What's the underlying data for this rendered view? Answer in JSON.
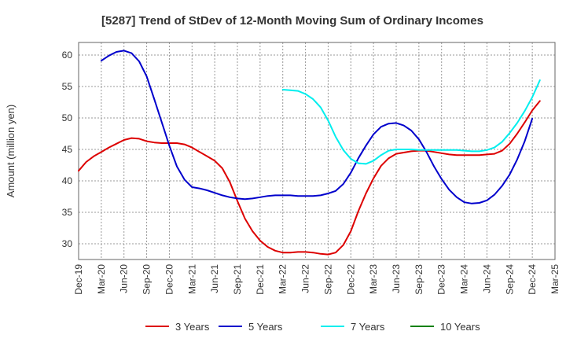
{
  "chart_data": {
    "type": "line",
    "title": "[5287]  Trend of StDev of 12-Month Moving Sum of Ordinary Incomes",
    "ylabel": "Amount (million yen)",
    "xlabel": "",
    "ylim": [
      27.5,
      62
    ],
    "yticks": [
      30,
      35,
      40,
      45,
      50,
      55,
      60
    ],
    "x_range": [
      "2019-12",
      "2025-03"
    ],
    "xticks": [
      "Dec-19",
      "Mar-20",
      "Jun-20",
      "Sep-20",
      "Dec-20",
      "Mar-21",
      "Jun-21",
      "Sep-21",
      "Dec-21",
      "Mar-22",
      "Jun-22",
      "Sep-22",
      "Dec-22",
      "Mar-23",
      "Jun-23",
      "Sep-23",
      "Dec-23",
      "Mar-24",
      "Jun-24",
      "Sep-24",
      "Dec-24",
      "Mar-25"
    ],
    "grid": true,
    "legend_position": "bottom",
    "series": [
      {
        "name": "3 Years",
        "color": "#dd0000",
        "points": [
          [
            "2019-12",
            41.6
          ],
          [
            "2020-01",
            43.0
          ],
          [
            "2020-02",
            43.9
          ],
          [
            "2020-03",
            44.6
          ],
          [
            "2020-04",
            45.3
          ],
          [
            "2020-05",
            45.9
          ],
          [
            "2020-06",
            46.5
          ],
          [
            "2020-07",
            46.8
          ],
          [
            "2020-08",
            46.7
          ],
          [
            "2020-09",
            46.3
          ],
          [
            "2020-10",
            46.1
          ],
          [
            "2020-11",
            46.0
          ],
          [
            "2020-12",
            46.0
          ],
          [
            "2021-01",
            46.0
          ],
          [
            "2021-02",
            45.8
          ],
          [
            "2021-03",
            45.3
          ],
          [
            "2021-04",
            44.6
          ],
          [
            "2021-05",
            43.9
          ],
          [
            "2021-06",
            43.2
          ],
          [
            "2021-07",
            42.0
          ],
          [
            "2021-08",
            39.8
          ],
          [
            "2021-09",
            36.8
          ],
          [
            "2021-10",
            34.0
          ],
          [
            "2021-11",
            32.0
          ],
          [
            "2021-12",
            30.5
          ],
          [
            "2022-01",
            29.5
          ],
          [
            "2022-02",
            28.9
          ],
          [
            "2022-03",
            28.6
          ],
          [
            "2022-04",
            28.6
          ],
          [
            "2022-05",
            28.7
          ],
          [
            "2022-06",
            28.7
          ],
          [
            "2022-07",
            28.6
          ],
          [
            "2022-08",
            28.4
          ],
          [
            "2022-09",
            28.3
          ],
          [
            "2022-10",
            28.6
          ],
          [
            "2022-11",
            29.8
          ],
          [
            "2022-12",
            32.0
          ],
          [
            "2023-01",
            35.2
          ],
          [
            "2023-02",
            38.0
          ],
          [
            "2023-03",
            40.4
          ],
          [
            "2023-04",
            42.4
          ],
          [
            "2023-05",
            43.6
          ],
          [
            "2023-06",
            44.3
          ],
          [
            "2023-07",
            44.5
          ],
          [
            "2023-08",
            44.7
          ],
          [
            "2023-09",
            44.8
          ],
          [
            "2023-10",
            44.8
          ],
          [
            "2023-11",
            44.6
          ],
          [
            "2023-12",
            44.4
          ],
          [
            "2024-01",
            44.2
          ],
          [
            "2024-02",
            44.1
          ],
          [
            "2024-03",
            44.1
          ],
          [
            "2024-04",
            44.1
          ],
          [
            "2024-05",
            44.1
          ],
          [
            "2024-06",
            44.2
          ],
          [
            "2024-07",
            44.3
          ],
          [
            "2024-08",
            44.8
          ],
          [
            "2024-09",
            45.9
          ],
          [
            "2024-10",
            47.5
          ],
          [
            "2024-11",
            49.3
          ],
          [
            "2024-12",
            51.2
          ],
          [
            "2025-01",
            52.7
          ]
        ]
      },
      {
        "name": "5 Years",
        "color": "#0000cc",
        "points": [
          [
            "2020-03",
            59.1
          ],
          [
            "2020-04",
            59.9
          ],
          [
            "2020-05",
            60.5
          ],
          [
            "2020-06",
            60.7
          ],
          [
            "2020-07",
            60.3
          ],
          [
            "2020-08",
            59.0
          ],
          [
            "2020-09",
            56.6
          ],
          [
            "2020-10",
            53.0
          ],
          [
            "2020-11",
            49.3
          ],
          [
            "2020-12",
            45.6
          ],
          [
            "2021-01",
            42.3
          ],
          [
            "2021-02",
            40.2
          ],
          [
            "2021-03",
            39.0
          ],
          [
            "2021-04",
            38.8
          ],
          [
            "2021-05",
            38.5
          ],
          [
            "2021-06",
            38.1
          ],
          [
            "2021-07",
            37.7
          ],
          [
            "2021-08",
            37.4
          ],
          [
            "2021-09",
            37.2
          ],
          [
            "2021-10",
            37.1
          ],
          [
            "2021-11",
            37.2
          ],
          [
            "2021-12",
            37.4
          ],
          [
            "2022-01",
            37.6
          ],
          [
            "2022-02",
            37.7
          ],
          [
            "2022-03",
            37.7
          ],
          [
            "2022-04",
            37.7
          ],
          [
            "2022-05",
            37.6
          ],
          [
            "2022-06",
            37.6
          ],
          [
            "2022-07",
            37.6
          ],
          [
            "2022-08",
            37.7
          ],
          [
            "2022-09",
            38.0
          ],
          [
            "2022-10",
            38.4
          ],
          [
            "2022-11",
            39.5
          ],
          [
            "2022-12",
            41.3
          ],
          [
            "2023-01",
            43.6
          ],
          [
            "2023-02",
            45.6
          ],
          [
            "2023-03",
            47.4
          ],
          [
            "2023-04",
            48.6
          ],
          [
            "2023-05",
            49.1
          ],
          [
            "2023-06",
            49.2
          ],
          [
            "2023-07",
            48.8
          ],
          [
            "2023-08",
            48.0
          ],
          [
            "2023-09",
            46.6
          ],
          [
            "2023-10",
            44.6
          ],
          [
            "2023-11",
            42.3
          ],
          [
            "2023-12",
            40.3
          ],
          [
            "2024-01",
            38.6
          ],
          [
            "2024-02",
            37.4
          ],
          [
            "2024-03",
            36.6
          ],
          [
            "2024-04",
            36.4
          ],
          [
            "2024-05",
            36.5
          ],
          [
            "2024-06",
            36.9
          ],
          [
            "2024-07",
            37.8
          ],
          [
            "2024-08",
            39.2
          ],
          [
            "2024-09",
            41.0
          ],
          [
            "2024-10",
            43.4
          ],
          [
            "2024-11",
            46.3
          ],
          [
            "2024-12",
            49.9
          ]
        ]
      },
      {
        "name": "7 Years",
        "color": "#00eeee",
        "points": [
          [
            "2022-03",
            54.5
          ],
          [
            "2022-04",
            54.4
          ],
          [
            "2022-05",
            54.3
          ],
          [
            "2022-06",
            53.8
          ],
          [
            "2022-07",
            53.0
          ],
          [
            "2022-08",
            51.7
          ],
          [
            "2022-09",
            49.6
          ],
          [
            "2022-10",
            47.0
          ],
          [
            "2022-11",
            44.9
          ],
          [
            "2022-12",
            43.5
          ],
          [
            "2023-01",
            42.8
          ],
          [
            "2023-02",
            42.7
          ],
          [
            "2023-03",
            43.2
          ],
          [
            "2023-04",
            44.1
          ],
          [
            "2023-05",
            44.8
          ],
          [
            "2023-06",
            45.0
          ],
          [
            "2023-07",
            45.0
          ],
          [
            "2023-08",
            45.0
          ],
          [
            "2023-09",
            44.9
          ],
          [
            "2023-10",
            44.9
          ],
          [
            "2023-11",
            44.9
          ],
          [
            "2023-12",
            44.9
          ],
          [
            "2024-01",
            44.9
          ],
          [
            "2024-02",
            44.9
          ],
          [
            "2024-03",
            44.8
          ],
          [
            "2024-04",
            44.7
          ],
          [
            "2024-05",
            44.7
          ],
          [
            "2024-06",
            44.9
          ],
          [
            "2024-07",
            45.3
          ],
          [
            "2024-08",
            46.2
          ],
          [
            "2024-09",
            47.6
          ],
          [
            "2024-10",
            49.2
          ],
          [
            "2024-11",
            51.1
          ],
          [
            "2024-12",
            53.3
          ],
          [
            "2025-01",
            56.0
          ]
        ]
      },
      {
        "name": "10 Years",
        "color": "#008000",
        "points": []
      }
    ]
  }
}
